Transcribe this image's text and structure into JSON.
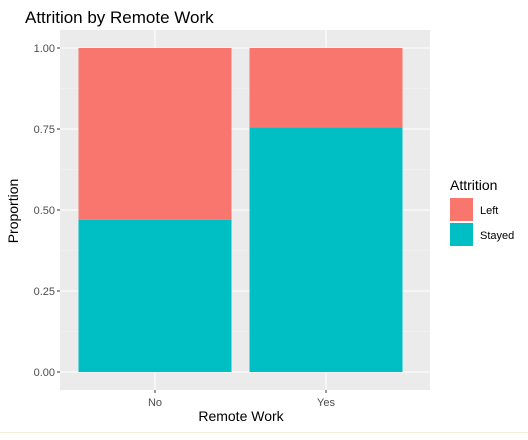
{
  "chart_data": {
    "type": "bar",
    "stacked": true,
    "title": "Attrition by Remote Work",
    "xlabel": "Remote Work",
    "ylabel": "Proportion",
    "categories": [
      "No",
      "Yes"
    ],
    "series": [
      {
        "name": "Stayed",
        "values": [
          0.47,
          0.755
        ],
        "color": "#00BFC4"
      },
      {
        "name": "Left",
        "values": [
          0.53,
          0.245
        ],
        "color": "#F8766D"
      }
    ],
    "ylim": [
      0,
      1
    ],
    "yticks": [
      0.0,
      0.25,
      0.5,
      0.75,
      1.0
    ],
    "ytick_labels": [
      "0.00",
      "0.25",
      "0.50",
      "0.75",
      "1.00"
    ],
    "grid": true,
    "legend": {
      "title": "Attrition",
      "position": "right",
      "entries": [
        {
          "label": "Left",
          "color": "#F8766D"
        },
        {
          "label": "Stayed",
          "color": "#00BFC4"
        }
      ]
    }
  }
}
